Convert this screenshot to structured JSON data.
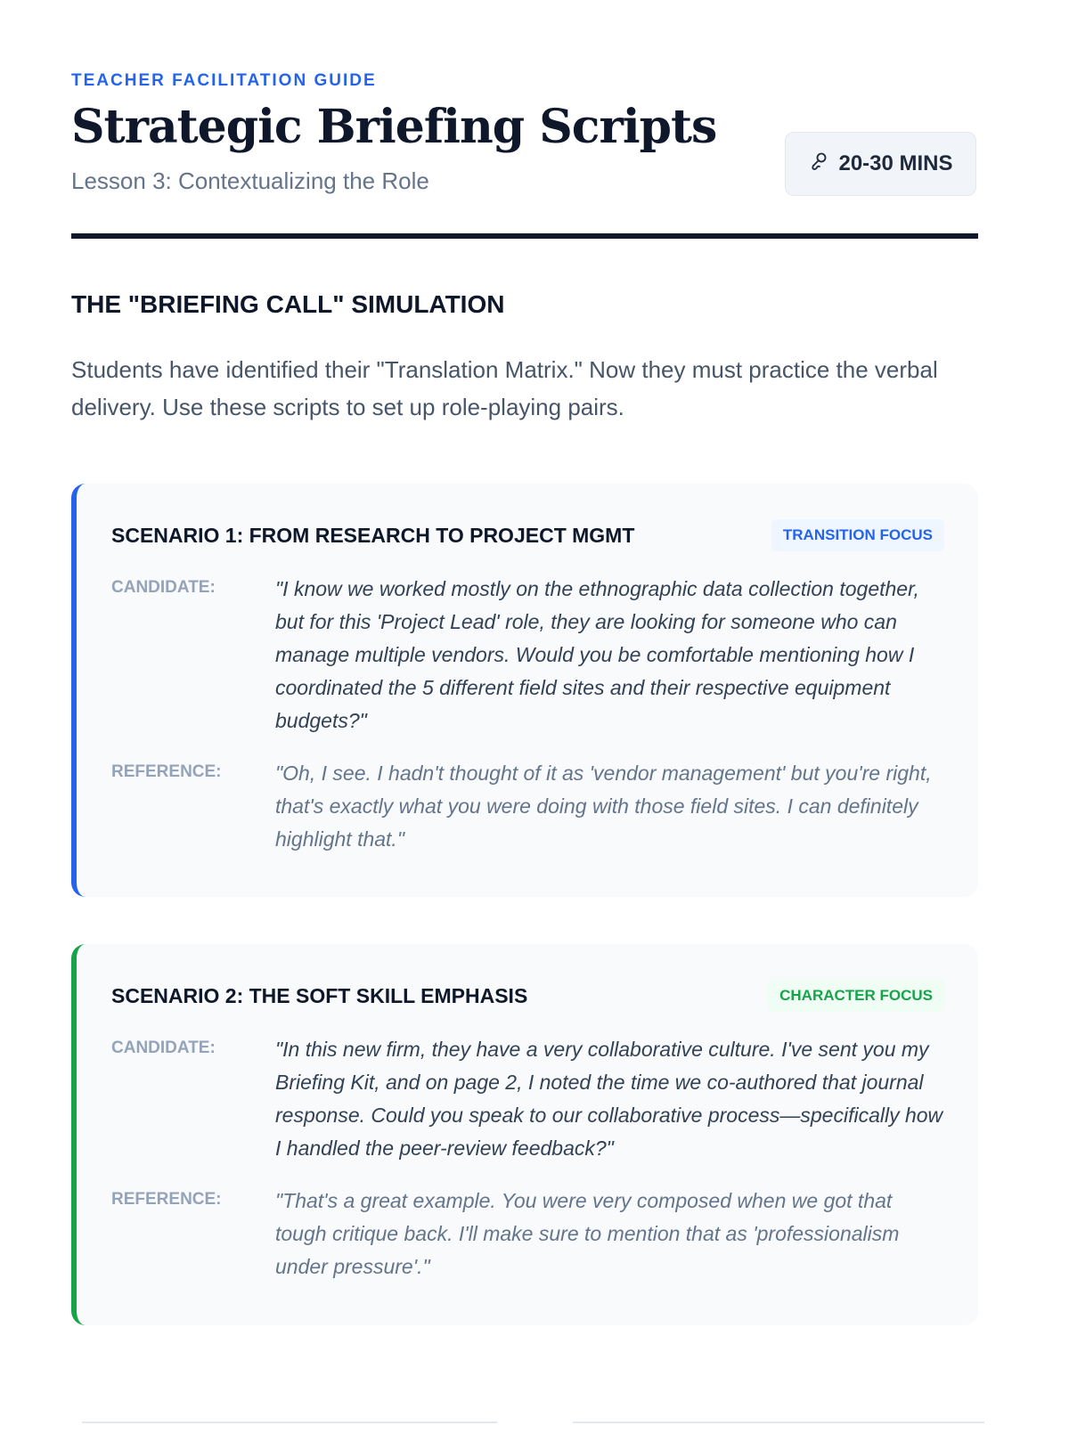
{
  "header": {
    "eyebrow": "TEACHER FACILITATION GUIDE",
    "title": "Strategic Briefing Scripts",
    "subtitle": "Lesson 3: Contextualizing the Role",
    "duration_icon": "microphone-icon",
    "duration": "20-30 MINS"
  },
  "section": {
    "title": "THE \"BRIEFING CALL\" SIMULATION",
    "intro": "Students have identified their \"Translation Matrix.\" Now they must practice the verbal delivery. Use these scripts to set up role-playing pairs."
  },
  "scenarios": [
    {
      "title": "SCENARIO 1: FROM RESEARCH TO PROJECT MGMT",
      "tag": "TRANSITION FOCUS",
      "accent": "#2563eb",
      "tag_bg": "#eff6ff",
      "candidate_label": "CANDIDATE:",
      "candidate": "\"I know we worked mostly on the ethnographic data collection together, but for this 'Project Lead' role, they are looking for someone who can manage multiple vendors. Would you be comfortable mentioning how I coordinated the 5 different field sites and their respective equipment budgets?\"",
      "reference_label": "REFERENCE:",
      "reference": "\"Oh, I see. I hadn't thought of it as 'vendor management' but you're right, that's exactly what you were doing with those field sites. I can definitely highlight that.\""
    },
    {
      "title": "SCENARIO 2: THE SOFT SKILL EMPHASIS",
      "tag": "CHARACTER FOCUS",
      "accent": "#16a34a",
      "tag_bg": "#f0fdf4",
      "candidate_label": "CANDIDATE:",
      "candidate": "\"In this new firm, they have a very collaborative culture. I've sent you my Briefing Kit, and on page 2, I noted the time we co-authored that journal response. Could you speak to our collaborative process—specifically how I handled the peer-review feedback?\"",
      "reference_label": "REFERENCE:",
      "reference": "\"That's a great example. You were very composed when we got that tough critique back. I'll make sure to mention that as 'professionalism under pressure'.\""
    }
  ]
}
